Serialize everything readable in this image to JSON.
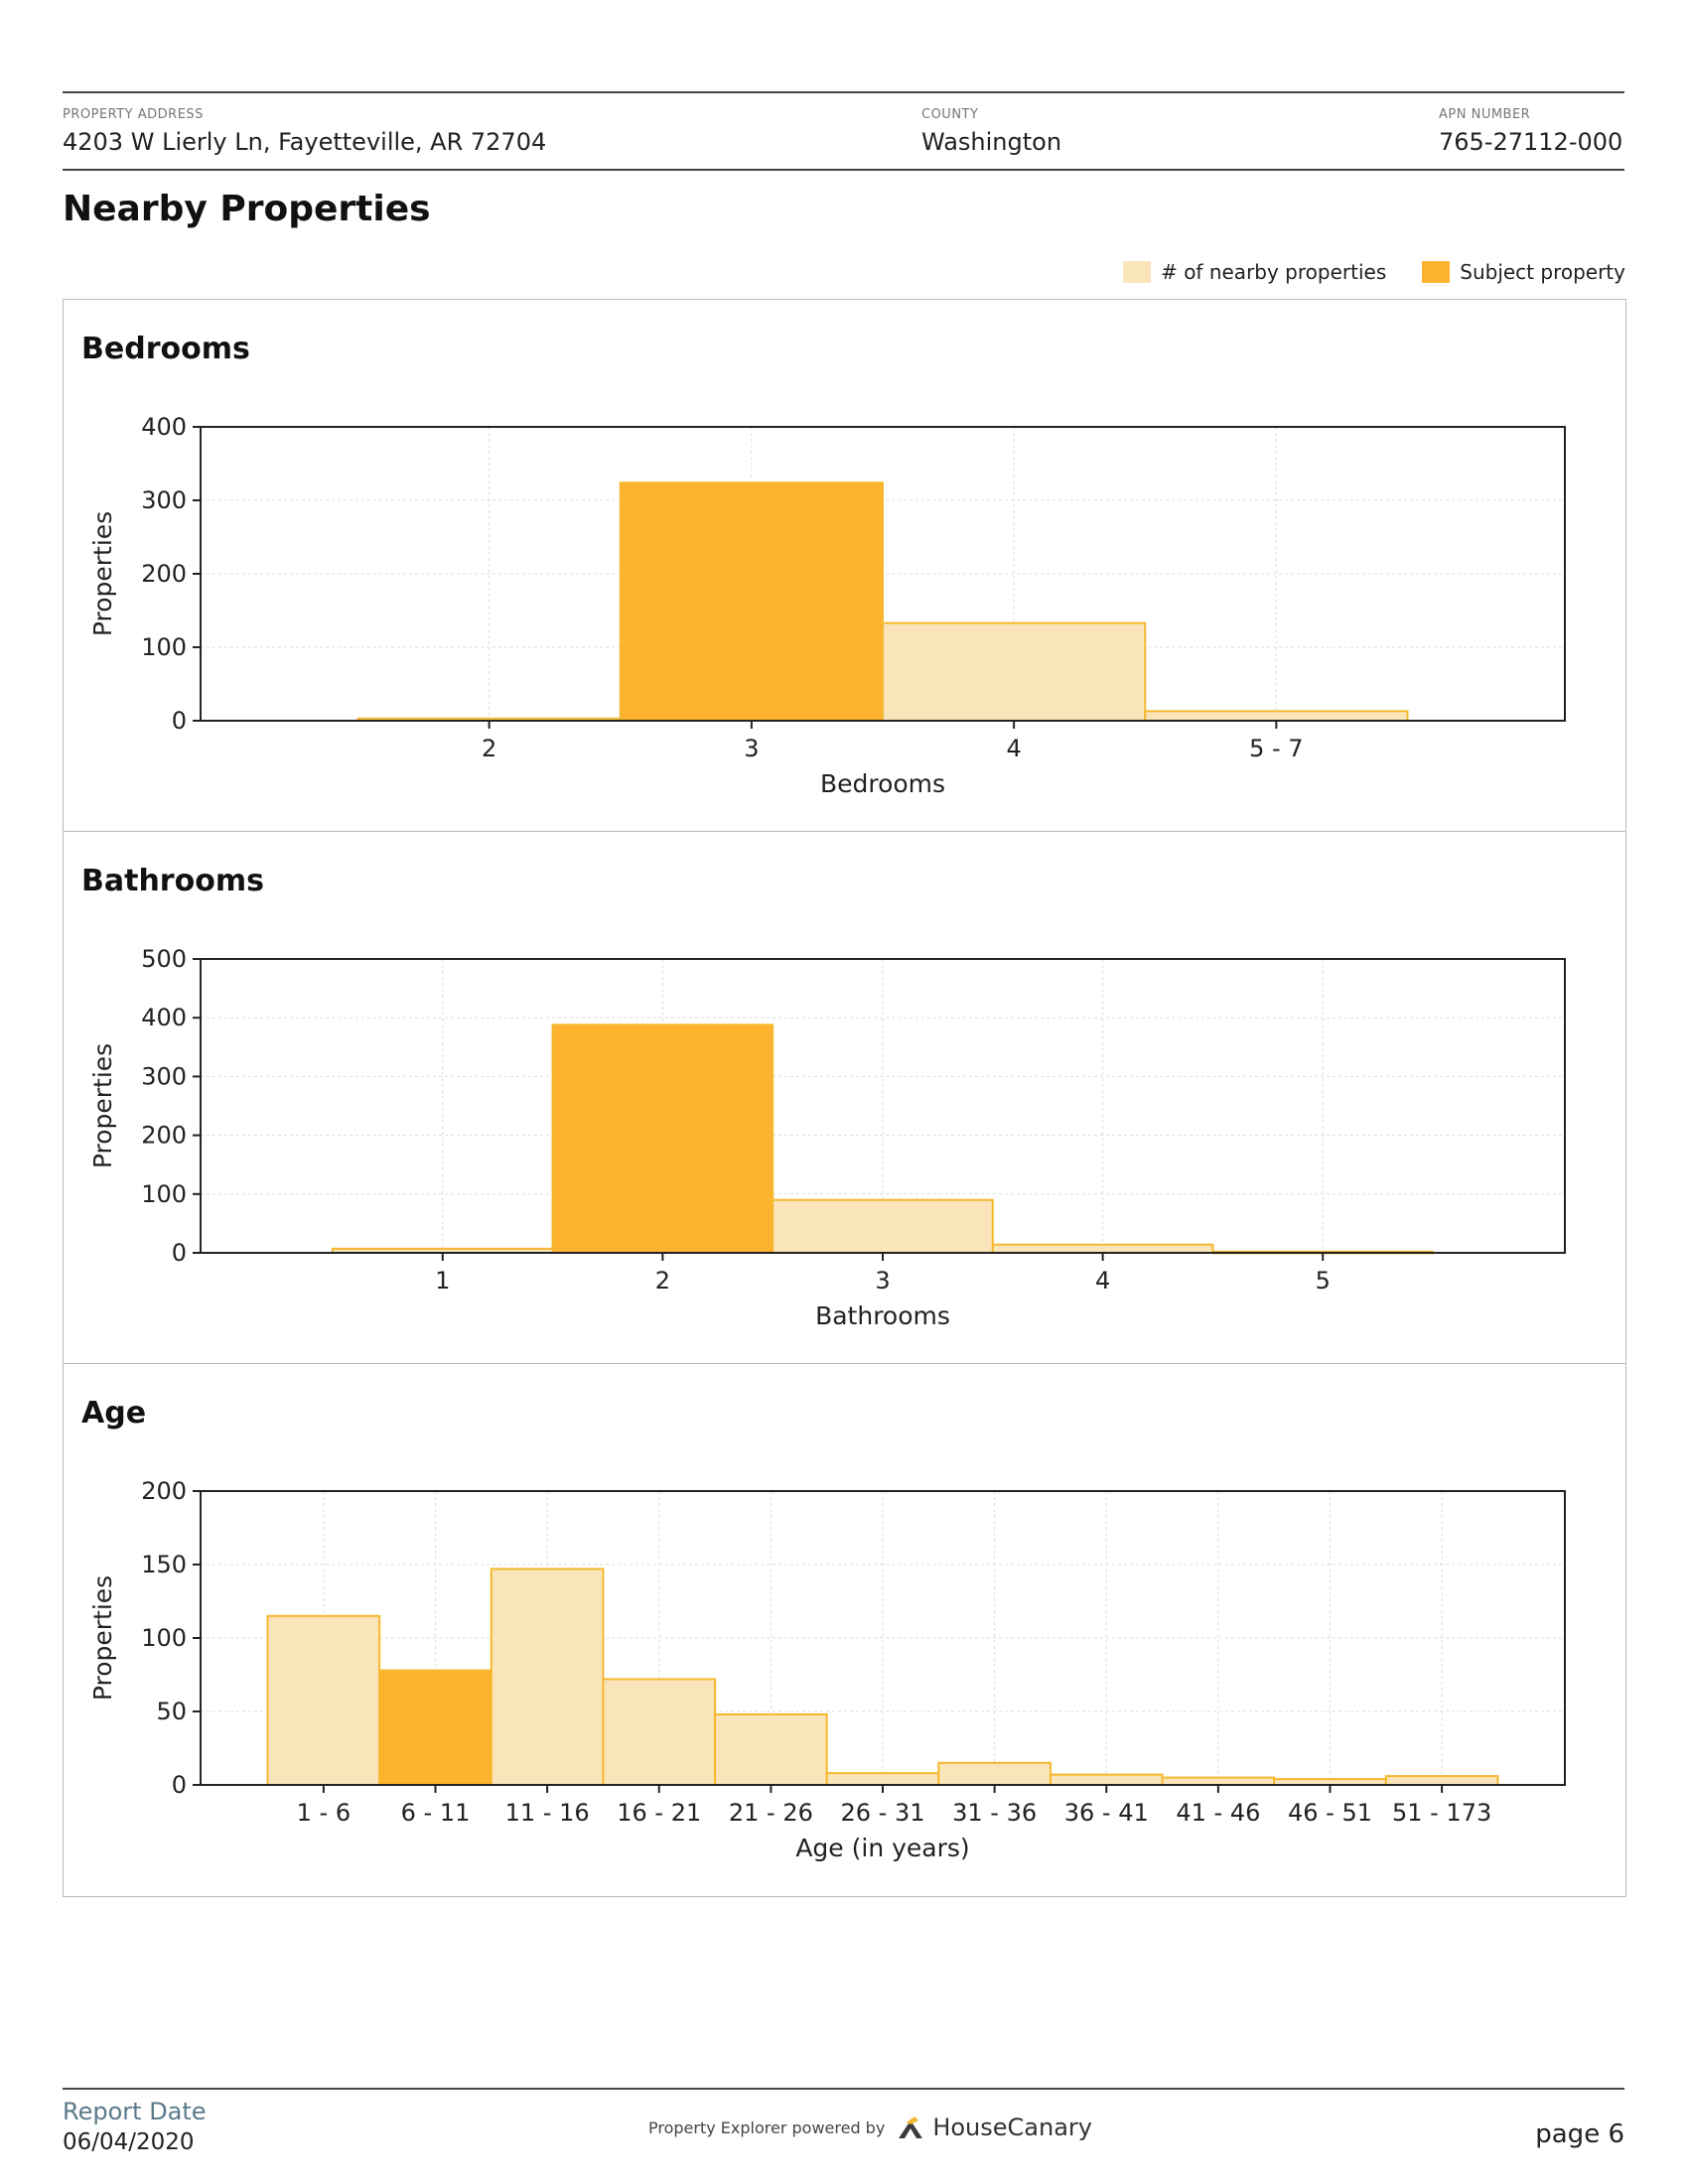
{
  "header": {
    "address_label": "PROPERTY ADDRESS",
    "address": "4203 W Lierly Ln, Fayetteville, AR 72704",
    "county_label": "COUNTY",
    "county": "Washington",
    "apn_label": "APN NUMBER",
    "apn": "765-27112-000"
  },
  "page_title": "Nearby Properties",
  "legend": {
    "nearby_label": "# of nearby properties",
    "subject_label": "Subject property"
  },
  "colors": {
    "nearby_fill": "#fae5bb",
    "subject_fill": "#feb32f",
    "bar_edge": "#f5b82e"
  },
  "chart_data": [
    {
      "type": "bar",
      "title": "Bedrooms",
      "xlabel": "Bedrooms",
      "ylabel": "Properties",
      "categories": [
        "2",
        "3",
        "4",
        "5 - 7"
      ],
      "values": [
        3,
        324,
        133,
        13
      ],
      "subject_index": 1,
      "ylim": [
        0,
        400
      ],
      "yticks": [
        0,
        100,
        200,
        300,
        400
      ],
      "grid": true
    },
    {
      "type": "bar",
      "title": "Bathrooms",
      "xlabel": "Bathrooms",
      "ylabel": "Properties",
      "categories": [
        "1",
        "2",
        "3",
        "4",
        "5"
      ],
      "values": [
        7,
        388,
        90,
        14,
        2
      ],
      "subject_index": 1,
      "ylim": [
        0,
        500
      ],
      "yticks": [
        0,
        100,
        200,
        300,
        400,
        500
      ],
      "grid": true
    },
    {
      "type": "bar",
      "title": "Age",
      "xlabel": "Age (in years)",
      "ylabel": "Properties",
      "categories": [
        "1 - 6",
        "6 - 11",
        "11 - 16",
        "16 - 21",
        "21 - 26",
        "26 - 31",
        "31 - 36",
        "36 - 41",
        "41 - 46",
        "46 - 51",
        "51 - 173"
      ],
      "values": [
        115,
        78,
        147,
        72,
        48,
        8,
        15,
        7,
        5,
        4,
        6
      ],
      "subject_index": 1,
      "ylim": [
        0,
        200
      ],
      "yticks": [
        0,
        50,
        100,
        150,
        200
      ],
      "grid": true
    }
  ],
  "footer": {
    "report_date_label": "Report Date",
    "report_date": "06/04/2020",
    "powered_by": "Property Explorer powered by",
    "brand": "HouseCanary",
    "page": "page 6"
  }
}
